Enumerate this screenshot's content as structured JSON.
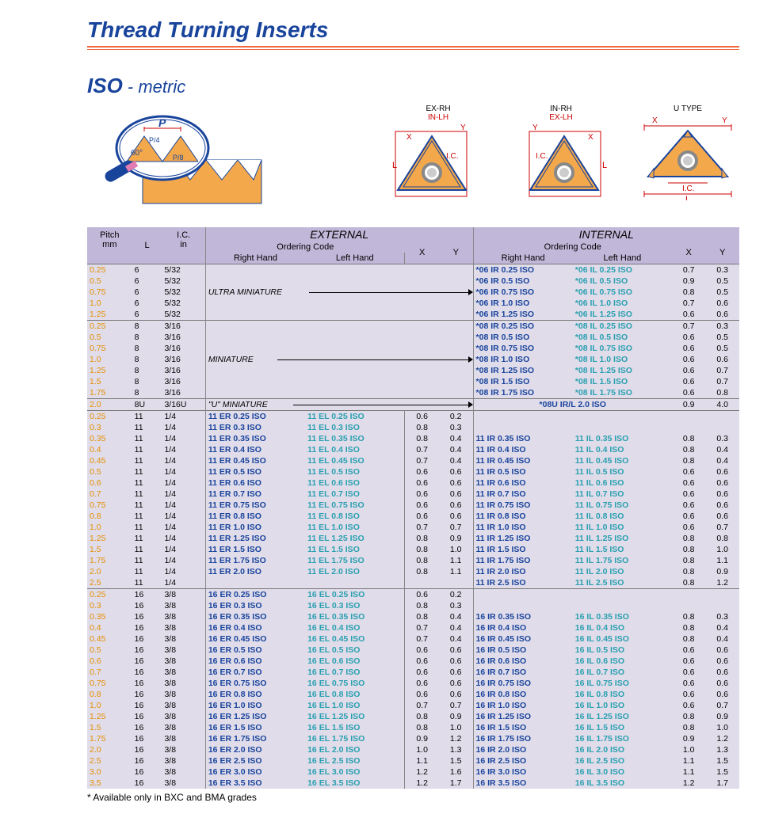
{
  "title": "Thread Turning Inserts",
  "iso_head_bold": "ISO",
  "iso_head_rest": " - metric",
  "diag_labels": {
    "p": "P",
    "p4": "P/4",
    "p8": "P/8",
    "angle": "60°",
    "exrh": "EX-RH",
    "inlh": "IN-LH",
    "inrh": "IN-RH",
    "exlh": "EX-LH",
    "utype": "U  TYPE",
    "ic": "I.C.",
    "x": "X",
    "y": "Y",
    "l": "L"
  },
  "headers": {
    "pitch": "Pitch",
    "pitch_u": "mm",
    "L": "L",
    "IC": "I.C.",
    "IC_u": "in",
    "ext": "EXTERNAL",
    "int": "INTERNAL",
    "oc": "Ordering Code",
    "rh": "Right Hand",
    "lh": "Left Hand",
    "x": "X",
    "y": "Y"
  },
  "section_labels": {
    "ultra": "ULTRA MINIATURE",
    "mini": "MINIATURE",
    "umini": "\"U\" MINIATURE",
    "u08": "*08U IR/L 2.0 ISO"
  },
  "footnote": "* Available only in BXC and BMA grades",
  "g1": [
    {
      "p": "0.25",
      "L": "6",
      "IC": "5/32",
      "ir": "*06 IR 0.25 ISO",
      "il": "*06 IL 0.25 ISO",
      "ix": "0.7",
      "iy": "0.3"
    },
    {
      "p": "0.5",
      "L": "6",
      "IC": "5/32",
      "ir": "*06 IR 0.5  ISO",
      "il": "*06 IL 0.5  ISO",
      "ix": "0.9",
      "iy": "0.5"
    },
    {
      "p": "0.75",
      "L": "6",
      "IC": "5/32",
      "ir": "*06 IR 0.75 ISO",
      "il": "*06 IL 0.75 ISO",
      "ix": "0.8",
      "iy": "0.5"
    },
    {
      "p": "1.0",
      "L": "6",
      "IC": "5/32",
      "ir": "*06 IR 1.0  ISO",
      "il": "*06 IL 1.0  ISO",
      "ix": "0.7",
      "iy": "0.6"
    },
    {
      "p": "1.25",
      "L": "6",
      "IC": "5/32",
      "ir": "*06 IR 1.25 ISO",
      "il": "*06 IL 1.25 ISO",
      "ix": "0.6",
      "iy": "0.6"
    }
  ],
  "g2": [
    {
      "p": "0.25",
      "L": "8",
      "IC": "3/16",
      "ir": "*08 IR 0.25 ISO",
      "il": "*08 IL 0.25 ISO",
      "ix": "0.7",
      "iy": "0.3"
    },
    {
      "p": "0.5",
      "L": "8",
      "IC": "3/16",
      "ir": "*08 IR 0.5  ISO",
      "il": "*08 IL 0.5  ISO",
      "ix": "0.6",
      "iy": "0.5"
    },
    {
      "p": "0.75",
      "L": "8",
      "IC": "3/16",
      "ir": "*08 IR 0.75 ISO",
      "il": "*08 IL 0.75 ISO",
      "ix": "0.6",
      "iy": "0.5"
    },
    {
      "p": "1.0",
      "L": "8",
      "IC": "3/16",
      "ir": "*08 IR 1.0  ISO",
      "il": "*08 IL 1.0  ISO",
      "ix": "0.6",
      "iy": "0.6"
    },
    {
      "p": "1.25",
      "L": "8",
      "IC": "3/16",
      "ir": "*08 IR 1.25 ISO",
      "il": "*08 IL 1.25 ISO",
      "ix": "0.6",
      "iy": "0.7"
    },
    {
      "p": "1.5",
      "L": "8",
      "IC": "3/16",
      "ir": "*08 IR 1.5  ISO",
      "il": "*08 IL 1.5  ISO",
      "ix": "0.6",
      "iy": "0.7"
    },
    {
      "p": "1.75",
      "L": "8",
      "IC": "3/16",
      "ir": "*08 IR 1.75 ISO",
      "il": "*08 IL 1.75 ISO",
      "ix": "0.6",
      "iy": "0.8"
    }
  ],
  "g2u": {
    "p": "2.0",
    "L": "8U",
    "IC": "3/16U",
    "ix": "0.9",
    "iy": "4.0"
  },
  "g3": [
    {
      "p": "0.25",
      "L": "11",
      "IC": "1/4",
      "er": "11 ER 0.25 ISO",
      "el": "11 EL 0.25 ISO",
      "ex": "0.6",
      "ey": "0.2"
    },
    {
      "p": "0.3",
      "L": "11",
      "IC": "1/4",
      "er": "11 ER 0.3  ISO",
      "el": "11 EL 0.3  ISO",
      "ex": "0.8",
      "ey": "0.3"
    },
    {
      "p": "0.35",
      "L": "11",
      "IC": "1/4",
      "er": "11 ER 0.35 ISO",
      "el": "11 EL 0.35 ISO",
      "ex": "0.8",
      "ey": "0.4",
      "ir": "11 IR 0.35 ISO",
      "il": "11 IL 0.35 ISO",
      "ix": "0.8",
      "iy": "0.3"
    },
    {
      "p": "0.4",
      "L": "11",
      "IC": "1/4",
      "er": "11 ER 0.4  ISO",
      "el": "11 EL 0.4  ISO",
      "ex": "0.7",
      "ey": "0.4",
      "ir": "11 IR 0.4  ISO",
      "il": "11 IL 0.4  ISO",
      "ix": "0.8",
      "iy": "0.4"
    },
    {
      "p": "0.45",
      "L": "11",
      "IC": "1/4",
      "er": "11 ER 0.45 ISO",
      "el": "11 EL 0.45 ISO",
      "ex": "0.7",
      "ey": "0.4",
      "ir": "11 IR 0.45 ISO",
      "il": "11 IL 0.45 ISO",
      "ix": "0.8",
      "iy": "0.4"
    },
    {
      "p": "0.5",
      "L": "11",
      "IC": "1/4",
      "er": "11 ER 0.5  ISO",
      "el": "11 EL 0.5  ISO",
      "ex": "0.6",
      "ey": "0.6",
      "ir": "11 IR 0.5  ISO",
      "il": "11 IL 0.5  ISO",
      "ix": "0.6",
      "iy": "0.6"
    },
    {
      "p": "0.6",
      "L": "11",
      "IC": "1/4",
      "er": "11 ER 0.6  ISO",
      "el": "11 EL 0.6  ISO",
      "ex": "0.6",
      "ey": "0.6",
      "ir": "11 IR 0.6  ISO",
      "il": "11 IL 0.6  ISO",
      "ix": "0.6",
      "iy": "0.6"
    },
    {
      "p": "0.7",
      "L": "11",
      "IC": "1/4",
      "er": "11 ER 0.7  ISO",
      "el": "11 EL 0.7  ISO",
      "ex": "0.6",
      "ey": "0.6",
      "ir": "11 IR 0.7  ISO",
      "il": "11 IL 0.7  ISO",
      "ix": "0.6",
      "iy": "0.6"
    },
    {
      "p": "0.75",
      "L": "11",
      "IC": "1/4",
      "er": "11 ER 0.75 ISO",
      "el": "11 EL 0.75 ISO",
      "ex": "0.6",
      "ey": "0.6",
      "ir": "11 IR 0.75 ISO",
      "il": "11 IL 0.75 ISO",
      "ix": "0.6",
      "iy": "0.6"
    },
    {
      "p": "0.8",
      "L": "11",
      "IC": "1/4",
      "er": "11 ER 0.8  ISO",
      "el": "11 EL 0.8  ISO",
      "ex": "0.6",
      "ey": "0.6",
      "ir": "11 IR 0.8  ISO",
      "il": "11 IL 0.8  ISO",
      "ix": "0.6",
      "iy": "0.6"
    },
    {
      "p": "1.0",
      "L": "11",
      "IC": "1/4",
      "er": "11 ER 1.0  ISO",
      "el": "11 EL 1.0  ISO",
      "ex": "0.7",
      "ey": "0.7",
      "ir": "11 IR 1.0  ISO",
      "il": "11 IL 1.0  ISO",
      "ix": "0.6",
      "iy": "0.7"
    },
    {
      "p": "1.25",
      "L": "11",
      "IC": "1/4",
      "er": "11 ER 1.25 ISO",
      "el": "11 EL 1.25 ISO",
      "ex": "0.8",
      "ey": "0.9",
      "ir": "11 IR 1.25 ISO",
      "il": "11 IL 1.25 ISO",
      "ix": "0.8",
      "iy": "0.8"
    },
    {
      "p": "1.5",
      "L": "11",
      "IC": "1/4",
      "er": "11 ER 1.5  ISO",
      "el": "11 EL 1.5  ISO",
      "ex": "0.8",
      "ey": "1.0",
      "ir": "11 IR 1.5  ISO",
      "il": "11 IL 1.5  ISO",
      "ix": "0.8",
      "iy": "1.0"
    },
    {
      "p": "1.75",
      "L": "11",
      "IC": "1/4",
      "er": "11 ER 1.75 ISO",
      "el": "11 EL 1.75 ISO",
      "ex": "0.8",
      "ey": "1.1",
      "ir": "11 IR 1.75 ISO",
      "il": "11 IL 1.75 ISO",
      "ix": "0.8",
      "iy": "1.1"
    },
    {
      "p": "2.0",
      "L": "11",
      "IC": "1/4",
      "er": "11 ER 2.0  ISO",
      "el": "11 EL 2.0  ISO",
      "ex": "0.8",
      "ey": "1.1",
      "ir": "11 IR 2.0  ISO",
      "il": "11 IL 2.0  ISO",
      "ix": "0.8",
      "iy": "0.9"
    },
    {
      "p": "2.5",
      "L": "11",
      "IC": "1/4",
      "ir": "11 IR 2.5  ISO",
      "il": "11 IL 2.5  ISO",
      "ix": "0.8",
      "iy": "1.2"
    }
  ],
  "g4": [
    {
      "p": "0.25",
      "L": "16",
      "IC": "3/8",
      "er": "16 ER 0.25 ISO",
      "el": "16 EL 0.25 ISO",
      "ex": "0.6",
      "ey": "0.2"
    },
    {
      "p": "0.3",
      "L": "16",
      "IC": "3/8",
      "er": "16 ER 0.3  ISO",
      "el": "16 EL 0.3  ISO",
      "ex": "0.8",
      "ey": "0.3"
    },
    {
      "p": "0.35",
      "L": "16",
      "IC": "3/8",
      "er": "16 ER 0.35 ISO",
      "el": "16 EL 0.35 ISO",
      "ex": "0.8",
      "ey": "0.4",
      "ir": "16 IR 0.35 ISO",
      "il": "16 IL 0.35 ISO",
      "ix": "0.8",
      "iy": "0.3"
    },
    {
      "p": "0.4",
      "L": "16",
      "IC": "3/8",
      "er": "16 ER 0.4  ISO",
      "el": "16 EL 0.4  ISO",
      "ex": "0.7",
      "ey": "0.4",
      "ir": "16 IR 0.4  ISO",
      "il": "16 IL 0.4  ISO",
      "ix": "0.8",
      "iy": "0.4"
    },
    {
      "p": "0.45",
      "L": "16",
      "IC": "3/8",
      "er": "16 ER 0.45 ISO",
      "el": "16 EL 0.45 ISO",
      "ex": "0.7",
      "ey": "0.4",
      "ir": "16 IR 0.45 ISO",
      "il": "16 IL 0.45 ISO",
      "ix": "0.8",
      "iy": "0.4"
    },
    {
      "p": "0.5",
      "L": "16",
      "IC": "3/8",
      "er": "16 ER 0.5  ISO",
      "el": "16 EL 0.5  ISO",
      "ex": "0.6",
      "ey": "0.6",
      "ir": "16 IR 0.5  ISO",
      "il": "16 IL 0.5  ISO",
      "ix": "0.6",
      "iy": "0.6"
    },
    {
      "p": "0.6",
      "L": "16",
      "IC": "3/8",
      "er": "16 ER 0.6  ISO",
      "el": "16 EL 0.6  ISO",
      "ex": "0.6",
      "ey": "0.6",
      "ir": "16 IR 0.6  ISO",
      "il": "16 IL 0.6  ISO",
      "ix": "0.6",
      "iy": "0.6"
    },
    {
      "p": "0.7",
      "L": "16",
      "IC": "3/8",
      "er": "16 ER 0.7  ISO",
      "el": "16 EL 0.7  ISO",
      "ex": "0.6",
      "ey": "0.6",
      "ir": "16 IR 0.7  ISO",
      "il": "16 IL 0.7  ISO",
      "ix": "0.6",
      "iy": "0.6"
    },
    {
      "p": "0.75",
      "L": "16",
      "IC": "3/8",
      "er": "16 ER 0.75 ISO",
      "el": "16 EL 0.75 ISO",
      "ex": "0.6",
      "ey": "0.6",
      "ir": "16 IR 0.75 ISO",
      "il": "16 IL 0.75 ISO",
      "ix": "0.6",
      "iy": "0.6"
    },
    {
      "p": "0.8",
      "L": "16",
      "IC": "3/8",
      "er": "16 ER 0.8  ISO",
      "el": "16 EL 0.8  ISO",
      "ex": "0.6",
      "ey": "0.6",
      "ir": "16 IR 0.8  ISO",
      "il": "16 IL 0.8  ISO",
      "ix": "0.6",
      "iy": "0.6"
    },
    {
      "p": "1.0",
      "L": "16",
      "IC": "3/8",
      "er": "16 ER 1.0  ISO",
      "el": "16 EL 1.0  ISO",
      "ex": "0.7",
      "ey": "0.7",
      "ir": "16 IR 1.0  ISO",
      "il": "16 IL 1.0  ISO",
      "ix": "0.6",
      "iy": "0.7"
    },
    {
      "p": "1.25",
      "L": "16",
      "IC": "3/8",
      "er": "16 ER 1.25 ISO",
      "el": "16 EL 1.25 ISO",
      "ex": "0.8",
      "ey": "0.9",
      "ir": "16 IR 1.25 ISO",
      "il": "16 IL 1.25 ISO",
      "ix": "0.8",
      "iy": "0.9"
    },
    {
      "p": "1.5",
      "L": "16",
      "IC": "3/8",
      "er": "16 ER 1.5  ISO",
      "el": "16 EL 1.5  ISO",
      "ex": "0.8",
      "ey": "1.0",
      "ir": "16 IR 1.5  ISO",
      "il": "16 IL 1.5  ISO",
      "ix": "0.8",
      "iy": "1.0"
    },
    {
      "p": "1.75",
      "L": "16",
      "IC": "3/8",
      "er": "16 ER 1.75 ISO",
      "el": "16 EL 1.75 ISO",
      "ex": "0.9",
      "ey": "1.2",
      "ir": "16 IR 1.75 ISO",
      "il": "16 IL 1.75 ISO",
      "ix": "0.9",
      "iy": "1.2"
    },
    {
      "p": "2.0",
      "L": "16",
      "IC": "3/8",
      "er": "16 ER 2.0  ISO",
      "el": "16 EL 2.0  ISO",
      "ex": "1.0",
      "ey": "1.3",
      "ir": "16 IR 2.0  ISO",
      "il": "16 IL 2.0  ISO",
      "ix": "1.0",
      "iy": "1.3"
    },
    {
      "p": "2.5",
      "L": "16",
      "IC": "3/8",
      "er": "16 ER 2.5  ISO",
      "el": "16 EL 2.5  ISO",
      "ex": "1.1",
      "ey": "1.5",
      "ir": "16 IR 2.5  ISO",
      "il": "16 IL 2.5  ISO",
      "ix": "1.1",
      "iy": "1.5"
    },
    {
      "p": "3.0",
      "L": "16",
      "IC": "3/8",
      "er": "16 ER 3.0  ISO",
      "el": "16 EL 3.0  ISO",
      "ex": "1.2",
      "ey": "1.6",
      "ir": "16 IR 3.0  ISO",
      "il": "16 IL 3.0  ISO",
      "ix": "1.1",
      "iy": "1.5"
    },
    {
      "p": "3.5",
      "L": "16",
      "IC": "3/8",
      "er": "16 ER 3.5  ISO",
      "el": "16 EL 3.5  ISO",
      "ex": "1.2",
      "ey": "1.7",
      "ir": "16 IR 3.5  ISO",
      "il": "16 IL 3.5  ISO",
      "ix": "1.2",
      "iy": "1.7"
    }
  ],
  "colors": {
    "navy": "#19449c",
    "teal": "#2aa0b0",
    "orange": "#e59000",
    "hdr1": "#c1b7d9",
    "hdr2": "#e0dcea",
    "rule": "#f0673b",
    "insert_fill": "#f3a84b",
    "insert_stroke": "#19449c",
    "red": "#c00"
  }
}
